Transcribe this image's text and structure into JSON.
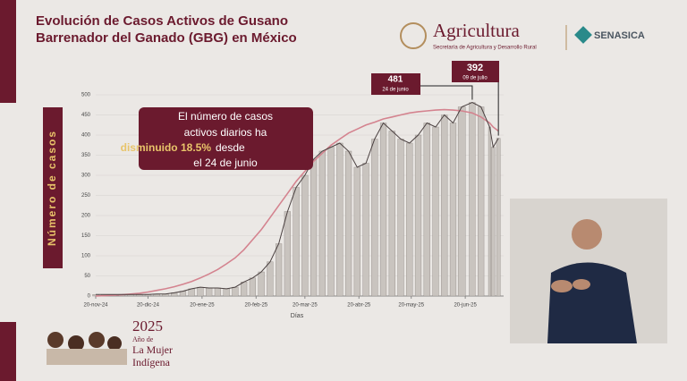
{
  "header": {
    "brand": "Agricultura",
    "ministry": "Secretaría de Agricultura y Desarrollo Rural",
    "agency": "SENASICA"
  },
  "footer": {
    "year": "2025",
    "lines": [
      "Año de",
      "La Mujer",
      "Indígena"
    ]
  },
  "chart_data": {
    "type": "bar",
    "title": [
      "Evolución de Casos Activos de Gusano",
      "Barrenador del Ganado (GBG) en México"
    ],
    "ylabel": "Número de casos",
    "xlabel": "Días",
    "x": [
      "2024-11-20",
      "2024-11-25",
      "2024-11-30",
      "2024-12-05",
      "2024-12-10",
      "2024-12-15",
      "2024-12-20",
      "2024-12-25",
      "2024-12-30",
      "2025-01-04",
      "2025-01-09",
      "2025-01-14",
      "2025-01-19",
      "2025-01-24",
      "2025-01-29",
      "2025-02-03",
      "2025-02-08",
      "2025-02-13",
      "2025-02-18",
      "2025-02-23",
      "2025-02-28",
      "2025-03-05",
      "2025-03-10",
      "2025-03-15",
      "2025-03-20",
      "2025-03-25",
      "2025-03-30",
      "2025-04-04",
      "2025-04-09",
      "2025-04-14",
      "2025-04-19",
      "2025-04-24",
      "2025-04-29",
      "2025-05-04",
      "2025-05-09",
      "2025-05-14",
      "2025-05-19",
      "2025-05-24",
      "2025-05-29",
      "2025-06-03",
      "2025-06-08",
      "2025-06-13",
      "2025-06-18",
      "2025-06-24",
      "2025-06-29",
      "2025-07-04",
      "2025-07-06",
      "2025-07-09"
    ],
    "series": [
      {
        "color": "#4a4040",
        "values": [
          4,
          4,
          4,
          4,
          4,
          4,
          4,
          5,
          5,
          8,
          12,
          18,
          22,
          20,
          20,
          18,
          22,
          35,
          45,
          60,
          85,
          130,
          210,
          270,
          300,
          340,
          360,
          370,
          380,
          360,
          320,
          330,
          390,
          430,
          410,
          390,
          380,
          400,
          430,
          420,
          450,
          430,
          470,
          481,
          470,
          420,
          370,
          392
        ]
      },
      {
        "color": "#d4838f",
        "values": [
          0,
          1,
          2,
          3,
          5,
          7,
          10,
          14,
          18,
          23,
          29,
          36,
          45,
          55,
          66,
          80,
          95,
          115,
          140,
          165,
          195,
          225,
          255,
          285,
          310,
          335,
          355,
          375,
          390,
          405,
          415,
          425,
          432,
          440,
          445,
          450,
          455,
          458,
          460,
          462,
          463,
          462,
          460,
          455,
          445,
          430,
          420,
          410
        ]
      }
    ],
    "xlim": [
      "2024-11-20",
      "2025-07-12"
    ],
    "xticks": [
      {
        "value": "2024-11-20",
        "label": "20-nov-24"
      },
      {
        "value": "2024-12-20",
        "label": "20-dic-24"
      },
      {
        "value": "2025-01-20",
        "label": "20-ene-25"
      },
      {
        "value": "2025-02-20",
        "label": "20-feb-25"
      },
      {
        "value": "2025-03-20",
        "label": "20-mar-25"
      },
      {
        "value": "2025-04-20",
        "label": "20-abr-25"
      },
      {
        "value": "2025-05-20",
        "label": "20-may-25"
      },
      {
        "value": "2025-06-20",
        "label": "20-jun-25"
      }
    ],
    "ylim": [
      0,
      500
    ],
    "yticks": [
      0,
      50,
      100,
      150,
      200,
      250,
      300,
      350,
      400,
      450,
      500
    ],
    "annotations": [
      {
        "label": "481",
        "date": "24 de junio"
      },
      {
        "label": "392",
        "date": "09 de julio"
      }
    ],
    "note": [
      "El número de casos",
      "activos diarios ha",
      "disminuido 18.5%",
      "desde",
      "el 24 de junio"
    ]
  }
}
